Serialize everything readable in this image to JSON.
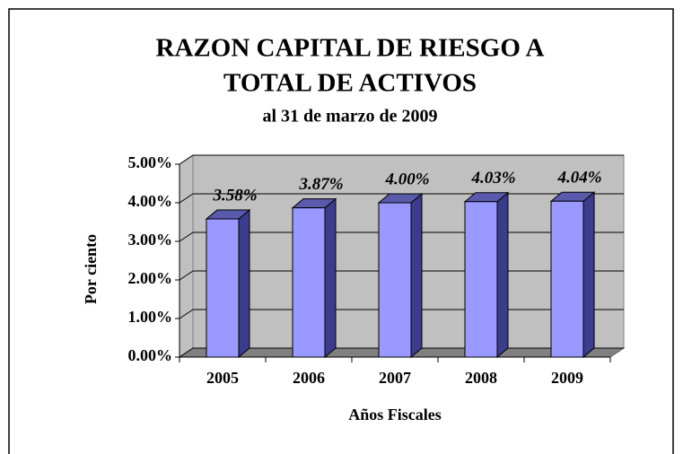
{
  "chart_data": {
    "type": "bar3d",
    "title": [
      "RAZON CAPITAL DE RIESGO A",
      "TOTAL DE ACTIVOS"
    ],
    "subtitle": "al 31 de marzo de 2009",
    "y_label": "Por ciento",
    "x_label": "Años Fiscales",
    "categories": [
      "2005",
      "2006",
      "2007",
      "2008",
      "2009"
    ],
    "values": [
      3.58,
      3.87,
      4.0,
      4.03,
      4.04
    ],
    "value_labels": [
      "3.58%",
      "3.87%",
      "4.00%",
      "4.03%",
      "4.04%"
    ],
    "color": "#9999ff",
    "ylim": [
      0,
      5
    ],
    "yticks": [
      {
        "value": 0,
        "label": "0.00%"
      },
      {
        "value": 1,
        "label": "1.00%"
      },
      {
        "value": 2,
        "label": "2.00%"
      },
      {
        "value": 3,
        "label": "3.00%"
      },
      {
        "value": 4,
        "label": "4.00%"
      },
      {
        "value": 5,
        "label": "5.00%"
      }
    ],
    "grid": true
  }
}
